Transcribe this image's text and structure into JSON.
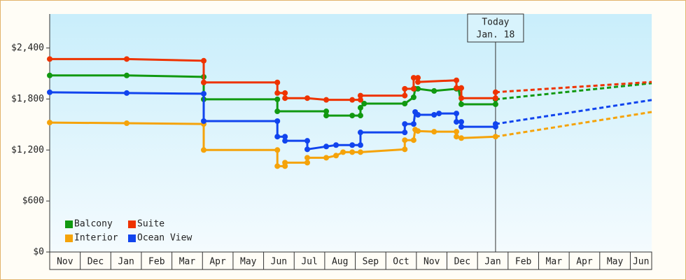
{
  "chart_data": {
    "type": "line",
    "step": true,
    "annotation": {
      "lines": [
        "Today",
        "Jan. 18"
      ],
      "x": 14.59
    },
    "xlim": [
      0,
      19.7
    ],
    "xticks": [
      {
        "value": 0.5,
        "label": "Nov"
      },
      {
        "value": 1.5,
        "label": "Dec"
      },
      {
        "value": 2.5,
        "label": "Jan"
      },
      {
        "value": 3.5,
        "label": "Feb"
      },
      {
        "value": 4.5,
        "label": "Mar"
      },
      {
        "value": 5.5,
        "label": "Apr"
      },
      {
        "value": 6.5,
        "label": "May"
      },
      {
        "value": 7.5,
        "label": "Jun"
      },
      {
        "value": 8.5,
        "label": "Jul"
      },
      {
        "value": 9.5,
        "label": "Aug"
      },
      {
        "value": 10.5,
        "label": "Sep"
      },
      {
        "value": 11.5,
        "label": "Oct"
      },
      {
        "value": 12.5,
        "label": "Nov"
      },
      {
        "value": 13.5,
        "label": "Dec"
      },
      {
        "value": 14.5,
        "label": "Jan"
      },
      {
        "value": 15.5,
        "label": "Feb"
      },
      {
        "value": 16.5,
        "label": "Mar"
      },
      {
        "value": 17.5,
        "label": "Apr"
      },
      {
        "value": 18.5,
        "label": "May"
      },
      {
        "value": 19.35,
        "label": "Jun"
      }
    ],
    "ylim": [
      0,
      2800
    ],
    "yticks": [
      {
        "value": 0,
        "label": "$0"
      },
      {
        "value": 600,
        "label": "$600"
      },
      {
        "value": 1200,
        "label": "$1,200"
      },
      {
        "value": 1800,
        "label": "$1,800"
      },
      {
        "value": 2400,
        "label": "$2,400"
      }
    ],
    "legend": "bottom-left",
    "series": [
      {
        "name": "Balcony",
        "color": "#119911",
        "x": [
          0,
          2.52,
          5.04,
          5.04,
          7.45,
          7.45,
          9.05,
          9.05,
          9.9,
          10.17,
          10.17,
          10.29,
          11.62,
          11.91,
          11.96,
          12.05,
          12.58,
          13.31,
          13.38,
          13.47,
          14.59,
          14.59
        ],
        "values": [
          2077,
          2077,
          2060,
          1796,
          1796,
          1655,
          1655,
          1605,
          1605,
          1605,
          1697,
          1746,
          1746,
          1820,
          1920,
          1920,
          1895,
          1920,
          1920,
          1738,
          1738,
          1796
        ],
        "forecast_x": [
          14.59,
          19.7
        ],
        "forecast_values": [
          1796,
          1986
        ]
      },
      {
        "name": "Suite",
        "color": "#ee3300",
        "x": [
          0,
          2.52,
          5.04,
          5.04,
          7.45,
          7.45,
          7.7,
          7.7,
          8.43,
          9.05,
          9.9,
          10.17,
          10.17,
          11.62,
          11.62,
          11.91,
          11.91,
          12.05,
          12.05,
          13.31,
          13.31,
          13.47,
          13.47,
          14.59,
          14.59
        ],
        "values": [
          2270,
          2270,
          2250,
          1995,
          1995,
          1870,
          1870,
          1810,
          1810,
          1790,
          1790,
          1790,
          1840,
          1840,
          1920,
          1920,
          2050,
          2050,
          2000,
          2020,
          1930,
          1930,
          1810,
          1810,
          1880
        ],
        "forecast_x": [
          14.59,
          19.7
        ],
        "forecast_values": [
          1880,
          2000
        ]
      },
      {
        "name": "Interior",
        "color": "#f5a30a",
        "x": [
          0,
          2.52,
          5.04,
          5.04,
          7.45,
          7.45,
          7.7,
          7.7,
          8.43,
          8.43,
          9.05,
          9.37,
          9.6,
          9.9,
          10.17,
          11.62,
          11.62,
          11.91,
          11.96,
          12.05,
          12.58,
          13.31,
          13.31,
          13.47,
          14.59
        ],
        "values": [
          1523,
          1515,
          1506,
          1200,
          1200,
          1010,
          1010,
          1051,
          1051,
          1109,
          1109,
          1134,
          1175,
          1175,
          1175,
          1208,
          1316,
          1316,
          1440,
          1423,
          1415,
          1415,
          1357,
          1340,
          1357
        ],
        "forecast_x": [
          14.59,
          19.7
        ],
        "forecast_values": [
          1357,
          1647
        ]
      },
      {
        "name": "Ocean View",
        "color": "#1144ee",
        "x": [
          0,
          2.52,
          5.04,
          5.04,
          7.45,
          7.45,
          7.7,
          7.7,
          8.43,
          8.43,
          9.05,
          9.37,
          9.9,
          10.17,
          10.17,
          11.62,
          11.62,
          11.91,
          11.96,
          12.05,
          12.58,
          12.74,
          13.31,
          13.31,
          13.47,
          13.47,
          14.59,
          14.59
        ],
        "values": [
          1879,
          1870,
          1862,
          1540,
          1540,
          1357,
          1357,
          1308,
          1308,
          1208,
          1241,
          1258,
          1258,
          1258,
          1407,
          1407,
          1506,
          1506,
          1647,
          1614,
          1614,
          1630,
          1630,
          1531,
          1531,
          1473,
          1473,
          1506
        ],
        "forecast_x": [
          14.59,
          19.7
        ],
        "forecast_values": [
          1506,
          1788
        ]
      }
    ]
  }
}
